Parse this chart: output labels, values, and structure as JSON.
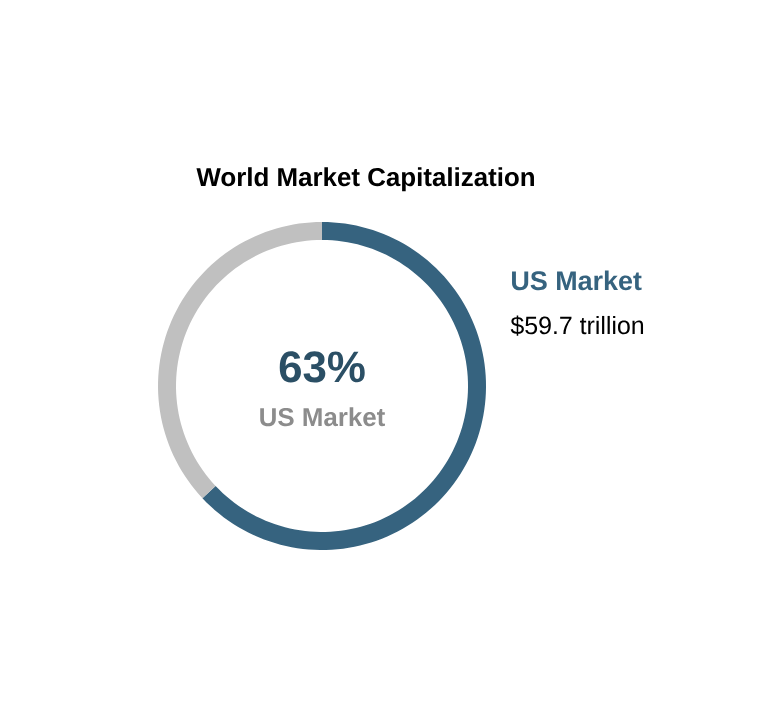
{
  "chart_data": {
    "type": "donut",
    "title": "World Market Capitalization",
    "categories": [
      "US Market",
      null
    ],
    "values": [
      63,
      37
    ],
    "colors": [
      "#36637f",
      "#c0c0c0"
    ],
    "value_labels": [
      "63%",
      null
    ],
    "annotations": [
      "US Market",
      "$59.7 trillion"
    ]
  }
}
